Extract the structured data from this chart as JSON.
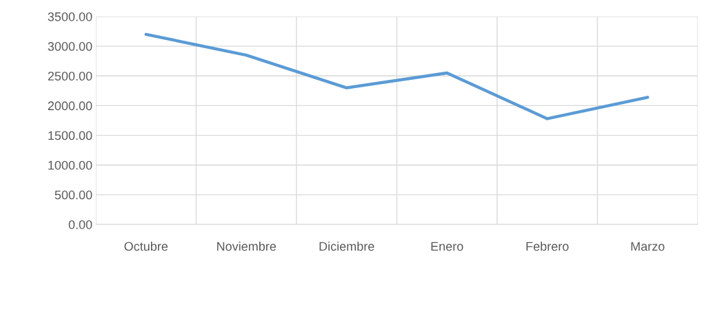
{
  "chart_data": {
    "type": "line",
    "categories": [
      "Octubre",
      "Noviembre",
      "Diciembre",
      "Enero",
      "Febrero",
      "Marzo"
    ],
    "series": [
      {
        "color": "#5b9bd5",
        "values": [
          3200,
          2850,
          2300,
          2550,
          1780,
          2140
        ]
      }
    ],
    "ylim": [
      0,
      3500
    ],
    "yticks": [
      {
        "value": 0,
        "label": "0.00"
      },
      {
        "value": 500,
        "label": "500.00"
      },
      {
        "value": 1000,
        "label": "1000.00"
      },
      {
        "value": 1500,
        "label": "1500.00"
      },
      {
        "value": 2000,
        "label": "2000.00"
      },
      {
        "value": 2500,
        "label": "2500.00"
      },
      {
        "value": 3000,
        "label": "3000.00"
      },
      {
        "value": 3500,
        "label": "3500.00"
      }
    ],
    "grid": true,
    "marker": "none",
    "line_style": "solid"
  }
}
